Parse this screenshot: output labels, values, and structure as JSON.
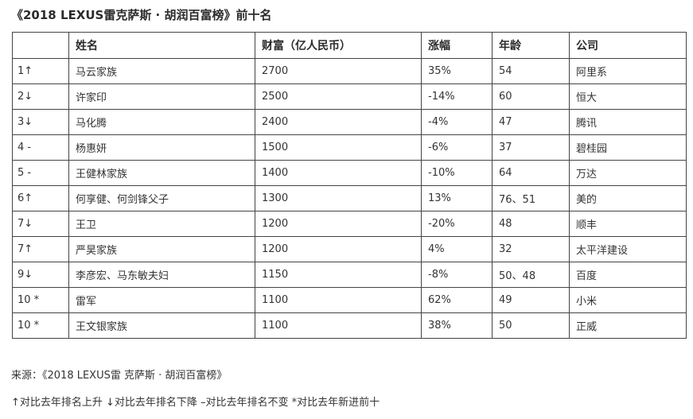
{
  "title": "《2018 LEXUS雷克萨斯 · 胡润百富榜》前十名",
  "table": {
    "headers": [
      "",
      "姓名",
      "财富（亿人民币）",
      "涨幅",
      "年龄",
      "公司"
    ],
    "rows": [
      {
        "rank": "1↑",
        "name": "马云家族",
        "wealth": "2700",
        "change": "35%",
        "age": "54",
        "company": "阿里系"
      },
      {
        "rank": "2↓",
        "name": "许家印",
        "wealth": "2500",
        "change": "-14%",
        "age": "60",
        "company": "恒大"
      },
      {
        "rank": "3↓",
        "name": "马化腾",
        "wealth": "2400",
        "change": "-4%",
        "age": "47",
        "company": "腾讯"
      },
      {
        "rank": "4 -",
        "name": "杨惠妍",
        "wealth": "1500",
        "change": "-6%",
        "age": "37",
        "company": "碧桂园"
      },
      {
        "rank": "5 -",
        "name": "王健林家族",
        "wealth": "1400",
        "change": "-10%",
        "age": "64",
        "company": "万达"
      },
      {
        "rank": "6↑",
        "name": "何享健、何剑锋父子",
        "wealth": "1300",
        "change": "13%",
        "age": "76、51",
        "company": "美的"
      },
      {
        "rank": "7↓",
        "name": "王卫",
        "wealth": "1200",
        "change": "-20%",
        "age": "48",
        "company": "顺丰"
      },
      {
        "rank": "7↑",
        "name": "严昊家族",
        "wealth": "1200",
        "change": "4%",
        "age": "32",
        "company": "太平洋建设"
      },
      {
        "rank": "9↓",
        "name": "李彦宏、马东敏夫妇",
        "wealth": "1150",
        "change": "-8%",
        "age": "50、48",
        "company": "百度"
      },
      {
        "rank": "10 *",
        "name": "雷军",
        "wealth": "1100",
        "change": "62%",
        "age": "49",
        "company": "小米"
      },
      {
        "rank": "10 *",
        "name": "王文银家族",
        "wealth": "1100",
        "change": "38%",
        "age": "50",
        "company": "正威"
      }
    ]
  },
  "footer": {
    "source": "来源：《2018 LEXUS雷 克萨斯 · 胡润百富榜》",
    "legend": "↑对比去年排名上升 ↓对比去年排名下降 –对比去年排名不变 *对比去年新进前十"
  }
}
